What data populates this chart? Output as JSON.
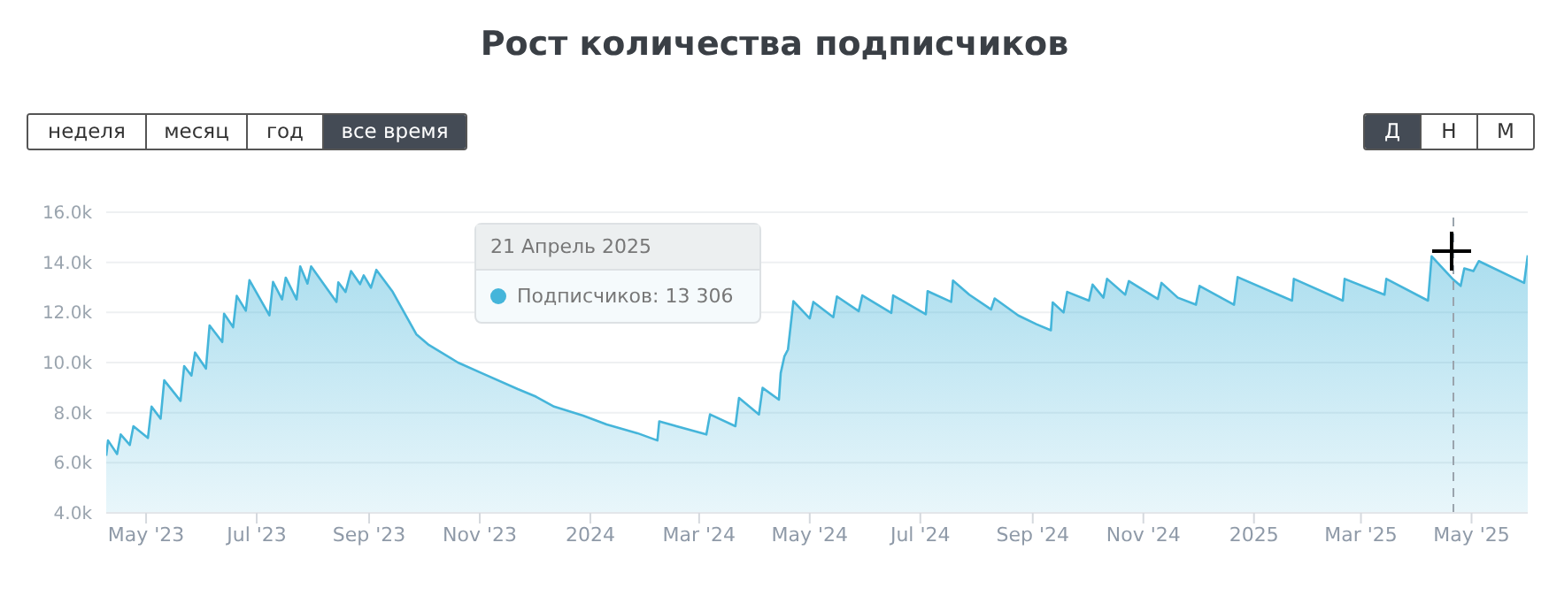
{
  "chart_data": {
    "type": "area",
    "title": "Рост количества подписчиков",
    "annotations": [
      "неделя",
      "месяц",
      "год",
      "все время",
      "Д",
      "Н",
      "М",
      "21 Апрель 2025",
      "Подписчиков: 13 306"
    ],
    "x": [
      "2023-04-09",
      "2023-04-10",
      "2023-04-15",
      "2023-04-17",
      "2023-04-22",
      "2023-04-24",
      "2023-05-02",
      "2023-05-04",
      "2023-05-09",
      "2023-05-11",
      "2023-05-20",
      "2023-05-22",
      "2023-05-26",
      "2023-05-28",
      "2023-06-03",
      "2023-06-05",
      "2023-06-12",
      "2023-06-13",
      "2023-06-18",
      "2023-06-20",
      "2023-06-25",
      "2023-06-27",
      "2023-07-08",
      "2023-07-10",
      "2023-07-15",
      "2023-07-17",
      "2023-07-23",
      "2023-07-25",
      "2023-07-29",
      "2023-07-31",
      "2023-08-14",
      "2023-08-15",
      "2023-08-19",
      "2023-08-22",
      "2023-08-27",
      "2023-08-29",
      "2023-09-02",
      "2023-09-05",
      "2023-09-14",
      "2023-09-27",
      "2023-10-04",
      "2023-10-20",
      "2023-11-02",
      "2023-11-22",
      "2023-12-02",
      "2023-12-12",
      "2023-12-28",
      "2024-01-10",
      "2024-01-27",
      "2024-02-07",
      "2024-02-08",
      "2024-03-05",
      "2024-03-07",
      "2024-03-21",
      "2024-03-23",
      "2024-04-03",
      "2024-04-05",
      "2024-04-14",
      "2024-04-15",
      "2024-04-17",
      "2024-04-19",
      "2024-04-22",
      "2024-05-01",
      "2024-05-03",
      "2024-05-14",
      "2024-05-16",
      "2024-05-28",
      "2024-05-30",
      "2024-06-15",
      "2024-06-16",
      "2024-07-04",
      "2024-07-05",
      "2024-07-18",
      "2024-07-19",
      "2024-07-28",
      "2024-08-09",
      "2024-08-11",
      "2024-08-24",
      "2024-09-03",
      "2024-09-11",
      "2024-09-12",
      "2024-09-18",
      "2024-09-20",
      "2024-10-02",
      "2024-10-04",
      "2024-10-10",
      "2024-10-12",
      "2024-10-22",
      "2024-10-24",
      "2024-11-09",
      "2024-11-11",
      "2024-11-20",
      "2024-11-30",
      "2024-12-02",
      "2024-12-21",
      "2024-12-23",
      "2025-01-22",
      "2025-01-23",
      "2025-02-19",
      "2025-02-20",
      "2025-03-14",
      "2025-03-15",
      "2025-04-07",
      "2025-04-09",
      "2025-04-21",
      "2025-04-25",
      "2025-04-27",
      "2025-05-02",
      "2025-05-05",
      "2025-05-30",
      "2025-06-01"
    ],
    "series": [
      {
        "color": "#45b5da",
        "values": [
          6280,
          6890,
          6350,
          7130,
          6710,
          7460,
          6990,
          8240,
          7760,
          9290,
          8470,
          9860,
          9480,
          10400,
          9760,
          11480,
          10820,
          11950,
          11410,
          12660,
          12070,
          13290,
          11880,
          13220,
          12520,
          13390,
          12520,
          13840,
          13150,
          13840,
          12420,
          13200,
          12820,
          13650,
          13130,
          13480,
          12990,
          13700,
          12820,
          11130,
          10700,
          10000,
          9580,
          8940,
          8640,
          8240,
          7880,
          7530,
          7180,
          6890,
          7650,
          7130,
          7930,
          7460,
          8590,
          7930,
          8990,
          8520,
          9580,
          10240,
          10520,
          12450,
          11760,
          12420,
          11810,
          12640,
          12050,
          12680,
          11980,
          12680,
          11930,
          12850,
          12420,
          13270,
          12710,
          12120,
          12560,
          11880,
          11530,
          11290,
          12400,
          12000,
          12820,
          12470,
          13110,
          12590,
          13340,
          12710,
          13250,
          12540,
          13180,
          12590,
          12310,
          13060,
          12310,
          13410,
          12470,
          13340,
          12470,
          13340,
          12710,
          13340,
          12470,
          14240,
          13306,
          13060,
          13760,
          13650,
          14050,
          13180,
          14280
        ]
      }
    ],
    "xlim": [
      "2023-04-09",
      "2025-06-01"
    ],
    "xticks": [
      {
        "value": "2023-05-01",
        "label": "May '23"
      },
      {
        "value": "2023-07-01",
        "label": "Jul '23"
      },
      {
        "value": "2023-09-01",
        "label": "Sep '23"
      },
      {
        "value": "2023-11-01",
        "label": "Nov '23"
      },
      {
        "value": "2024-01-01",
        "label": "2024"
      },
      {
        "value": "2024-03-01",
        "label": "Mar '24"
      },
      {
        "value": "2024-05-01",
        "label": "May '24"
      },
      {
        "value": "2024-07-01",
        "label": "Jul '24"
      },
      {
        "value": "2024-09-01",
        "label": "Sep '24"
      },
      {
        "value": "2024-11-01",
        "label": "Nov '24"
      },
      {
        "value": "2025-01-01",
        "label": "2025"
      },
      {
        "value": "2025-03-01",
        "label": "Mar '25"
      },
      {
        "value": "2025-05-01",
        "label": "May '25"
      }
    ],
    "ylim": [
      4000,
      16000
    ],
    "yticks": [
      {
        "value": 4000,
        "label": "4.0k"
      },
      {
        "value": 6000,
        "label": "6.0k"
      },
      {
        "value": 8000,
        "label": "8.0k"
      },
      {
        "value": 10000,
        "label": "10.0k"
      },
      {
        "value": 12000,
        "label": "12.0k"
      },
      {
        "value": 14000,
        "label": "14.0k"
      },
      {
        "value": 16000,
        "label": "16.0k"
      }
    ],
    "ref_lines": [
      {
        "axis": "x",
        "value": "2025-04-21",
        "line_style": "dashed",
        "color": "#9aa4ad"
      }
    ],
    "grid": "y",
    "legend": false,
    "marker": "none",
    "line_style": "solid"
  }
}
